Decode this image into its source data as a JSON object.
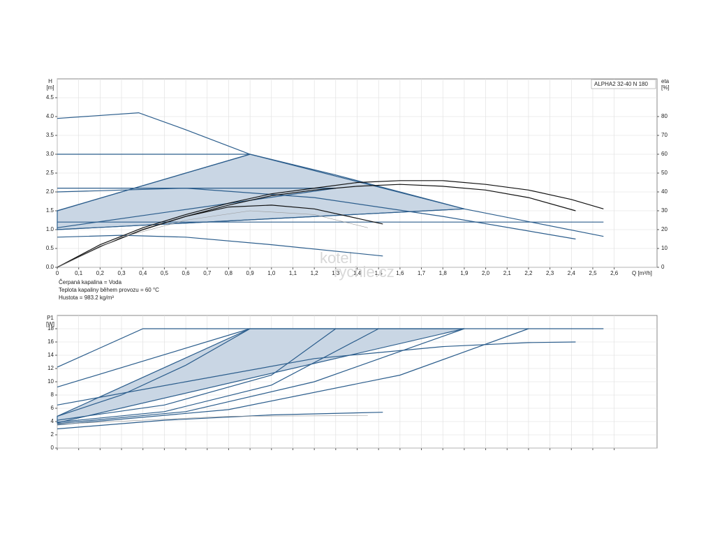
{
  "chart_data": [
    {
      "type": "line",
      "annotation": "ALPHA2 32-40 N 180",
      "y_label": "H",
      "y_unit": "[m]",
      "y2_label": "eta",
      "y2_unit": "[%]",
      "x_label": "Q [m³/h]",
      "notes": [
        "Čerpaná kapalina = Voda",
        "Teplota kapaliny během provozu = 60 °C",
        "Hustota = 983.2 kg/m³"
      ],
      "watermark": [
        "kotel",
        "rychle.cz"
      ],
      "xlim": [
        0,
        2.8
      ],
      "ylim": [
        0,
        5
      ],
      "y2lim": [
        0,
        100
      ],
      "grid": true,
      "xticks": [
        0,
        {
          "value": 0.1,
          "label": "0,1"
        },
        {
          "value": 0.2,
          "label": "0,2"
        },
        {
          "value": 0.3,
          "label": "0,3"
        },
        {
          "value": 0.4,
          "label": "0,4"
        },
        {
          "value": 0.5,
          "label": "0,5"
        },
        {
          "value": 0.6,
          "label": "0,6"
        },
        {
          "value": 0.7,
          "label": "0,7"
        },
        {
          "value": 0.8,
          "label": "0,8"
        },
        {
          "value": 0.9,
          "label": "0,9"
        },
        {
          "value": 1.0,
          "label": "1,0"
        },
        {
          "value": 1.1,
          "label": "1,1"
        },
        {
          "value": 1.2,
          "label": "1,2"
        },
        {
          "value": 1.3,
          "label": "1,3"
        },
        {
          "value": 1.4,
          "label": "1,4"
        },
        {
          "value": 1.5,
          "label": "1,5"
        },
        {
          "value": 1.6,
          "label": "1,6"
        },
        {
          "value": 1.7,
          "label": "1,7"
        },
        {
          "value": 1.8,
          "label": "1,8"
        },
        {
          "value": 1.9,
          "label": "1,9"
        },
        {
          "value": 2.0,
          "label": "2,0"
        },
        {
          "value": 2.1,
          "label": "2,1"
        },
        {
          "value": 2.2,
          "label": "2,2"
        },
        {
          "value": 2.3,
          "label": "2,3"
        },
        {
          "value": 2.4,
          "label": "2,4"
        },
        {
          "value": 2.5,
          "label": "2,5"
        },
        {
          "value": 2.6,
          "label": "2,6"
        }
      ],
      "yticks": [
        {
          "value": 0,
          "label": "0.0"
        },
        0.5,
        {
          "value": 1,
          "label": "1.0"
        },
        1.5,
        {
          "value": 2,
          "label": "2.0"
        },
        2.5,
        {
          "value": 3,
          "label": "3.0"
        },
        3.5,
        {
          "value": 4,
          "label": "4.0"
        },
        4.5
      ],
      "y2ticks": [
        0,
        10,
        20,
        30,
        40,
        50,
        60,
        70,
        80
      ],
      "series": [
        {
          "color": "#2b5d8c",
          "fill": "#c9d6e4",
          "x": [
            0,
            0,
            0.9,
            1.9
          ],
          "values": [
            1.0,
            1.5,
            3.0,
            1.55
          ]
        },
        {
          "color": "#2b5d8c",
          "x": [
            0,
            0.38,
            0.6,
            0.9,
            1.3,
            1.9,
            2.55
          ],
          "values": [
            3.95,
            4.1,
            3.65,
            3.0,
            2.45,
            1.55,
            0.82
          ]
        },
        {
          "color": "#2b5d8c",
          "x": [
            0,
            0.9
          ],
          "values": [
            3.0,
            3.0
          ]
        },
        {
          "color": "#2b5d8c",
          "x": [
            0,
            0.9
          ],
          "values": [
            1.5,
            3.0
          ]
        },
        {
          "color": "#2b5d8c",
          "x": [
            0,
            0.6,
            1.2,
            1.8,
            2.42
          ],
          "values": [
            2.0,
            2.1,
            1.85,
            1.35,
            0.75
          ]
        },
        {
          "color": "#2b5d8c",
          "x": [
            0,
            1.3
          ],
          "values": [
            2.1,
            2.1
          ]
        },
        {
          "color": "#2b5d8c",
          "x": [
            0,
            1.3
          ],
          "values": [
            1.05,
            2.1
          ]
        },
        {
          "color": "#2b5d8c",
          "x": [
            0,
            2.55
          ],
          "values": [
            1.2,
            1.2
          ]
        },
        {
          "color": "#2b5d8c",
          "x": [
            0,
            1.9
          ],
          "values": [
            1.0,
            1.55
          ]
        },
        {
          "color": "#2b5d8c",
          "x": [
            0,
            0.3,
            0.6,
            1.0,
            1.52
          ],
          "values": [
            0.8,
            0.85,
            0.8,
            0.6,
            0.3
          ]
        },
        {
          "color": "#111111",
          "axis": "y2",
          "x": [
            0,
            0.2,
            0.4,
            0.6,
            0.8,
            1.0,
            1.2,
            1.4,
            1.6,
            1.8,
            2.0,
            2.2,
            2.4,
            2.55
          ],
          "values": [
            0,
            12,
            21,
            28,
            34,
            39,
            42,
            45,
            46,
            46,
            44,
            41,
            36,
            31
          ]
        },
        {
          "color": "#111111",
          "axis": "y2",
          "x": [
            0,
            0.2,
            0.4,
            0.6,
            0.8,
            1.0,
            1.2,
            1.4,
            1.6,
            1.8,
            2.0,
            2.2,
            2.42
          ],
          "values": [
            0,
            11,
            20,
            27,
            33,
            38,
            41,
            43,
            44,
            43,
            41,
            37,
            30
          ]
        },
        {
          "color": "#111111",
          "axis": "y2",
          "x": [
            0,
            0.2,
            0.4,
            0.6,
            0.8,
            1.0,
            1.2,
            1.4,
            1.52
          ],
          "values": [
            0,
            11,
            20,
            27,
            32,
            33,
            31,
            26,
            23
          ]
        },
        {
          "color": "#999999",
          "axis": "y2",
          "x": [
            0,
            0.3,
            0.6,
            0.9,
            1.2,
            1.45
          ],
          "values": [
            0,
            16,
            25,
            30,
            28,
            21
          ]
        }
      ]
    },
    {
      "type": "line",
      "y_label": "P1",
      "y_unit": "[W]",
      "xlim": [
        0,
        2.8
      ],
      "ylim": [
        0,
        20
      ],
      "grid": true,
      "xtick_labels": false,
      "xticks": [
        0,
        0.1,
        0.2,
        0.3,
        0.4,
        0.5,
        0.6,
        0.7,
        0.8,
        0.9,
        1.0,
        1.1,
        1.2,
        1.3,
        1.4,
        1.5,
        1.6,
        1.7,
        1.8,
        1.9,
        2.0,
        2.1,
        2.2,
        2.3,
        2.4,
        2.5,
        2.6
      ],
      "yticks": [
        0,
        2,
        4,
        6,
        8,
        10,
        12,
        14,
        16,
        18
      ],
      "series": [
        {
          "color": "#2b5d8c",
          "fill": "#c9d6e4",
          "x": [
            0,
            0,
            0.9,
            1.9
          ],
          "values": [
            3.8,
            4.8,
            18,
            18
          ]
        },
        {
          "color": "#2b5d8c",
          "x": [
            0,
            0.4,
            2.55
          ],
          "values": [
            12.2,
            18,
            18
          ]
        },
        {
          "color": "#2b5d8c",
          "x": [
            0,
            0.9
          ],
          "values": [
            9.2,
            18
          ]
        },
        {
          "color": "#2b5d8c",
          "x": [
            0,
            0.3,
            0.6,
            0.9
          ],
          "values": [
            4.8,
            8,
            12.5,
            18
          ]
        },
        {
          "color": "#2b5d8c",
          "x": [
            0,
            0.5,
            1.0,
            1.3
          ],
          "values": [
            4.2,
            6.5,
            11,
            18
          ]
        },
        {
          "color": "#2b5d8c",
          "x": [
            0,
            0.5,
            1.0,
            1.5
          ],
          "values": [
            3.9,
            5.5,
            9.5,
            18
          ]
        },
        {
          "color": "#2b5d8c",
          "x": [
            0,
            0.6,
            1.2,
            1.9
          ],
          "values": [
            3.7,
            5.5,
            10,
            18
          ]
        },
        {
          "color": "#2b5d8c",
          "x": [
            0,
            0.8,
            1.6,
            2.2
          ],
          "values": [
            3.5,
            5.8,
            11,
            18
          ]
        },
        {
          "color": "#2b5d8c",
          "x": [
            0,
            0.6,
            1.2,
            1.8,
            2.2,
            2.42
          ],
          "values": [
            6.5,
            10,
            13.5,
            15.3,
            15.9,
            16
          ]
        },
        {
          "color": "#2b5d8c",
          "x": [
            0,
            0.5,
            1.0,
            1.52
          ],
          "values": [
            2.9,
            4.2,
            5.0,
            5.4
          ]
        },
        {
          "color": "#999999",
          "x": [
            0,
            0.8,
            1.45
          ],
          "values": [
            3.6,
            4.8,
            4.9
          ]
        }
      ]
    }
  ]
}
